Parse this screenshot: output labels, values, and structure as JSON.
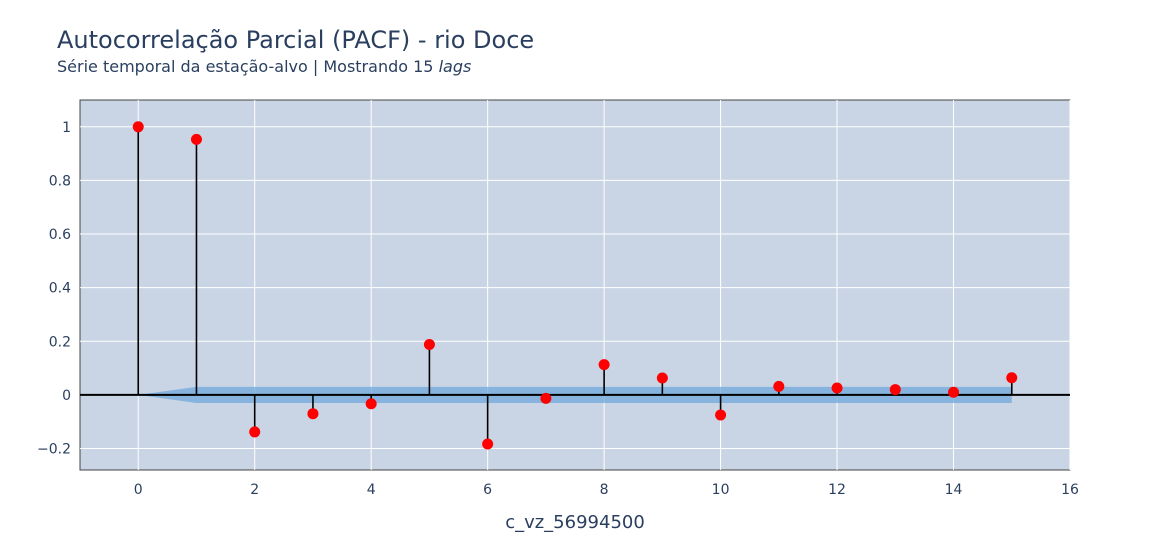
{
  "header": {
    "title": "Autocorrelação Parcial (PACF) - rio Doce",
    "subtitle_prefix": "Série temporal da estação-alvo | Mostrando 15 ",
    "subtitle_italic": "lags"
  },
  "colors": {
    "plot_bg": "#c9d5e5",
    "grid": "#ffffff",
    "stem": "#000000",
    "marker": "#ff0000",
    "band": "#6fa8dc",
    "text": "#2a3f5f"
  },
  "chart_data": {
    "type": "stem",
    "title": "Autocorrelação Parcial (PACF) - rio Doce",
    "xlabel": "c_vz_56994500",
    "ylabel": "",
    "xlim": [
      -1,
      16
    ],
    "ylim": [
      -0.28,
      1.1
    ],
    "xticks": [
      0,
      2,
      4,
      6,
      8,
      10,
      12,
      14,
      16
    ],
    "yticks": [
      -0.2,
      0,
      0.2,
      0.4,
      0.6,
      0.8,
      1
    ],
    "ytick_labels": [
      "−0.2",
      "0",
      "0.2",
      "0.4",
      "0.6",
      "0.8",
      "1"
    ],
    "grid": true,
    "legend": "none",
    "x": [
      0,
      1,
      2,
      3,
      4,
      5,
      6,
      7,
      8,
      9,
      10,
      11,
      12,
      13,
      14,
      15
    ],
    "values": [
      1.0,
      0.953,
      -0.138,
      -0.07,
      -0.033,
      0.188,
      -0.183,
      -0.013,
      0.113,
      0.063,
      -0.075,
      0.032,
      0.026,
      0.02,
      0.01,
      0.064
    ],
    "confidence_band": {
      "x": [
        0,
        1,
        15
      ],
      "upper": [
        0,
        0.03,
        0.03
      ],
      "lower": [
        0,
        -0.03,
        -0.03
      ]
    }
  }
}
